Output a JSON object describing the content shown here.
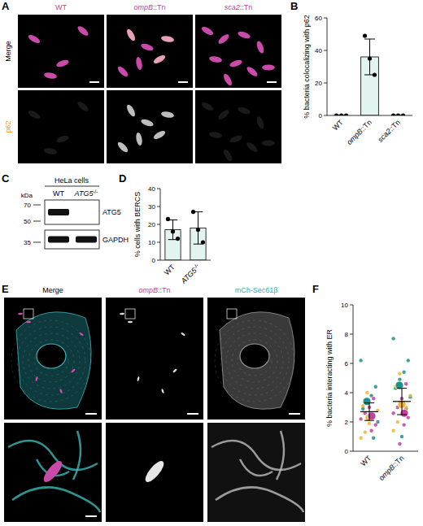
{
  "figure": {
    "panel_letters": [
      "A",
      "B",
      "C",
      "D",
      "E",
      "F"
    ]
  },
  "panel_a": {
    "columns": [
      "WT",
      "ompB::Tn",
      "sca2::Tn"
    ],
    "rows": [
      "Merge",
      "p62"
    ]
  },
  "panel_c": {
    "title": "HeLa cells",
    "lanes": [
      "WT",
      "ATG5-/-"
    ],
    "size_label": "kDa",
    "markers": [
      70,
      50,
      35
    ],
    "bands": [
      "ATG5",
      "GAPDH"
    ],
    "bands_present": [
      [
        true,
        false
      ],
      [
        true,
        true
      ]
    ]
  },
  "panel_e": {
    "columns": [
      "Merge",
      "ompB::Tn",
      "mCh-Sec61β"
    ]
  },
  "chart_data": [
    {
      "type": "bar",
      "y_label": "% bacteria colocalizing with p62",
      "categories": [
        "WT",
        "ompB::Tn",
        "sca2::Tn"
      ],
      "values": [
        0,
        36,
        0
      ],
      "errors": [
        0,
        11,
        0
      ],
      "points": [
        [
          0,
          0,
          0
        ],
        [
          49,
          35,
          25
        ],
        [
          0,
          0,
          0
        ]
      ],
      "ylim": [
        0,
        60
      ],
      "yticks": [
        0,
        20,
        40,
        60
      ],
      "color": "#e2f4ef"
    },
    {
      "type": "bar",
      "y_label": "% cells with BERCS",
      "categories": [
        "WT",
        "ATG5-/-"
      ],
      "values": [
        17,
        18
      ],
      "errors": [
        5.5,
        9
      ],
      "points": [
        [
          23,
          16,
          12
        ],
        [
          27,
          17,
          10
        ]
      ],
      "ylim": [
        0,
        40
      ],
      "yticks": [
        0,
        10,
        20,
        30,
        40
      ],
      "color": "#e2f4ef"
    },
    {
      "type": "superplot",
      "y_label": "% bacteria interacting with ER",
      "categories": [
        "WT",
        "ompB::Tn"
      ],
      "values": [
        2.7,
        3.4
      ],
      "errors": [
        0.6,
        0.9
      ],
      "ylim": [
        0,
        10
      ],
      "yticks": [
        0,
        2,
        4,
        6,
        8,
        10
      ],
      "replicates": [
        {
          "color": "#1f8f8a",
          "means": [
            3.4,
            4.5
          ],
          "points": [
            [
              6.2,
              4.4,
              3.8,
              3.4,
              2.9,
              2.0,
              0.9
            ],
            [
              7.7,
              6.2,
              5.4,
              4.9,
              4.3,
              3.7,
              2.9,
              1.0
            ]
          ]
        },
        {
          "color": "#f2b233",
          "means": [
            2.3,
            3.2
          ],
          "points": [
            [
              4.0,
              3.1,
              2.8,
              2.4,
              1.9,
              1.3,
              0.9
            ],
            [
              5.3,
              4.4,
              3.8,
              3.0,
              2.5,
              2.0,
              1.4
            ]
          ]
        },
        {
          "color": "#c2419b",
          "means": [
            2.4,
            2.6
          ],
          "points": [
            [
              3.6,
              3.0,
              2.6,
              2.2,
              1.8,
              1.4
            ],
            [
              4.6,
              3.6,
              3.0,
              2.6,
              2.3,
              1.8,
              0.5
            ]
          ]
        }
      ]
    }
  ]
}
